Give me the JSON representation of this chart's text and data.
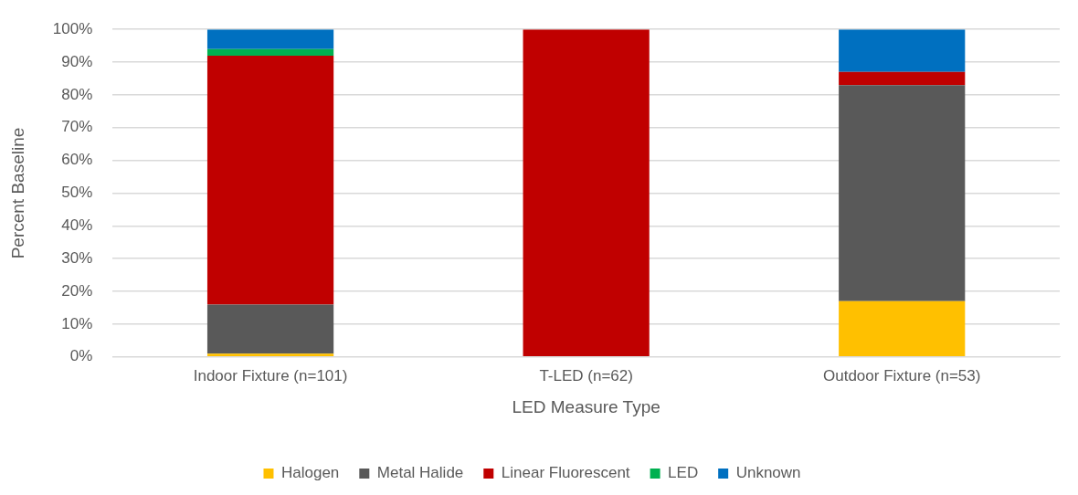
{
  "chart_data": {
    "type": "bar",
    "stacked": true,
    "xlabel": "LED Measure Type",
    "ylabel": "Percent Baseline",
    "categories": [
      "Indoor Fixture (n=101)",
      "T-LED (n=62)",
      "Outdoor Fixture (n=53)"
    ],
    "series": [
      {
        "name": "Halogen",
        "color": "#ffc000",
        "values": [
          1,
          0,
          17
        ]
      },
      {
        "name": "Metal Halide",
        "color": "#595959",
        "values": [
          15,
          0,
          66
        ]
      },
      {
        "name": "Linear Fluorescent",
        "color": "#c00000",
        "values": [
          76,
          100,
          4
        ]
      },
      {
        "name": "LED",
        "color": "#00b050",
        "values": [
          2,
          0,
          0
        ]
      },
      {
        "name": "Unknown",
        "color": "#0070c0",
        "values": [
          6,
          0,
          13
        ]
      }
    ],
    "ylim": [
      0,
      100
    ],
    "yticks": [
      {
        "value": 0,
        "label": "0%"
      },
      {
        "value": 10,
        "label": "10%"
      },
      {
        "value": 20,
        "label": "20%"
      },
      {
        "value": 30,
        "label": "30%"
      },
      {
        "value": 40,
        "label": "40%"
      },
      {
        "value": 50,
        "label": "50%"
      },
      {
        "value": 60,
        "label": "60%"
      },
      {
        "value": 70,
        "label": "70%"
      },
      {
        "value": 80,
        "label": "80%"
      },
      {
        "value": 90,
        "label": "90%"
      },
      {
        "value": 100,
        "label": "100%"
      }
    ],
    "grid": "y",
    "legend": "bottom"
  }
}
